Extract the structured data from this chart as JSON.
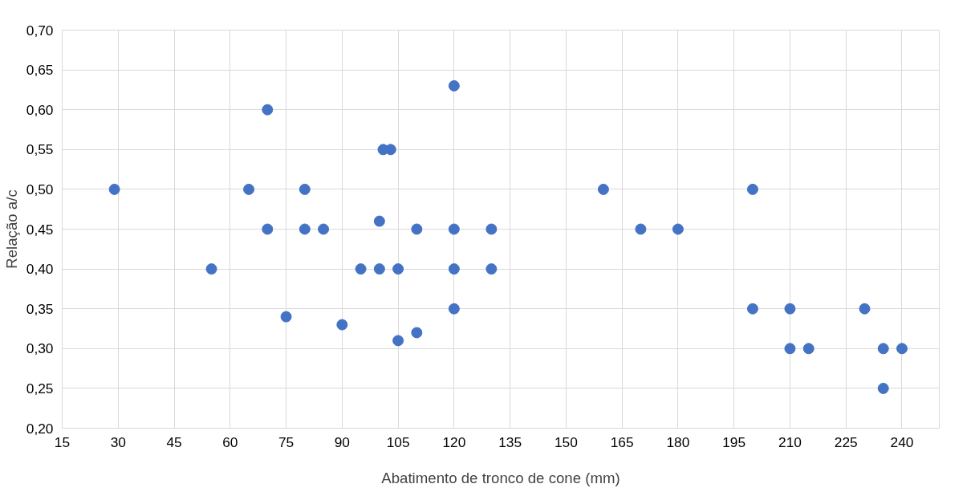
{
  "chart_data": {
    "type": "scatter",
    "xlabel": "Abatimento de tronco de cone (mm)",
    "ylabel": "Relação a/c",
    "x": [
      29,
      55,
      65,
      70,
      70,
      75,
      80,
      80,
      85,
      90,
      95,
      100,
      100,
      101,
      103,
      105,
      105,
      110,
      110,
      120,
      120,
      120,
      120,
      130,
      130,
      160,
      170,
      180,
      200,
      200,
      210,
      210,
      215,
      230,
      235,
      235,
      240
    ],
    "values": [
      0.5,
      0.4,
      0.5,
      0.6,
      0.45,
      0.34,
      0.5,
      0.45,
      0.45,
      0.33,
      0.4,
      0.46,
      0.4,
      0.55,
      0.55,
      0.4,
      0.31,
      0.45,
      0.32,
      0.63,
      0.45,
      0.4,
      0.35,
      0.45,
      0.4,
      0.5,
      0.45,
      0.45,
      0.5,
      0.35,
      0.35,
      0.3,
      0.3,
      0.35,
      0.3,
      0.25,
      0.3
    ],
    "color": "#4472c4",
    "marker": "circle",
    "grid": true,
    "xlim": [
      15,
      250
    ],
    "xticks": [
      15,
      30,
      45,
      60,
      75,
      90,
      105,
      120,
      135,
      150,
      165,
      180,
      195,
      210,
      225,
      240
    ],
    "ylim": [
      0.2,
      0.7
    ],
    "yticks": [
      {
        "value": 0.2,
        "label": "0,20"
      },
      {
        "value": 0.25,
        "label": "0,25"
      },
      {
        "value": 0.3,
        "label": "0,30"
      },
      {
        "value": 0.35,
        "label": "0,35"
      },
      {
        "value": 0.4,
        "label": "0,40"
      },
      {
        "value": 0.45,
        "label": "0,45"
      },
      {
        "value": 0.5,
        "label": "0,50"
      },
      {
        "value": 0.55,
        "label": "0,55"
      },
      {
        "value": 0.6,
        "label": "0,60"
      },
      {
        "value": 0.65,
        "label": "0,65"
      },
      {
        "value": 0.7,
        "label": "0,70"
      }
    ]
  }
}
